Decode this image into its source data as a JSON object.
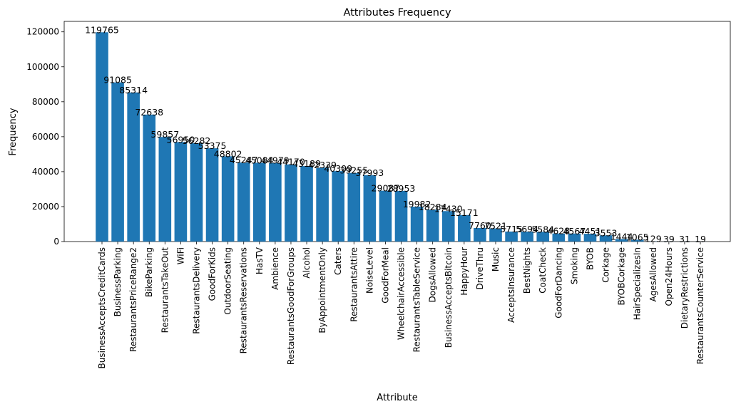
{
  "chart_data": {
    "type": "bar",
    "title": "Attributes Frequency",
    "xlabel": "Attribute",
    "ylabel": "Frequency",
    "ylim": [
      0,
      126000
    ],
    "yticks": [
      0,
      20000,
      40000,
      60000,
      80000,
      100000,
      120000
    ],
    "grid": false,
    "bar_color": "#1f77b4",
    "categories": [
      "BusinessAcceptsCreditCards",
      "BusinessParking",
      "RestaurantsPriceRange2",
      "BikeParking",
      "RestaurantsTakeOut",
      "WiFi",
      "RestaurantsDelivery",
      "GoodForKids",
      "OutdoorSeating",
      "RestaurantsReservations",
      "HasTV",
      "Ambience",
      "RestaurantsGoodForGroups",
      "Alcohol",
      "ByAppointmentOnly",
      "Caters",
      "RestaurantsAttire",
      "NoiseLevel",
      "GoodForMeal",
      "WheelchairAccessible",
      "RestaurantsTableService",
      "DogsAllowed",
      "BusinessAcceptsBitcoin",
      "HappyHour",
      "DriveThru",
      "Music",
      "AcceptsInsurance",
      "BestNights",
      "CoatCheck",
      "GoodForDancing",
      "Smoking",
      "BYOB",
      "Corkage",
      "BYOBCorkage",
      "HairSpecializesIn",
      "AgesAllowed",
      "Open24Hours",
      "DietaryRestrictions",
      "RestaurantsCounterService"
    ],
    "values": [
      119765,
      91085,
      85314,
      72638,
      59857,
      56950,
      56282,
      53375,
      48802,
      45247,
      45084,
      44979,
      44170,
      43189,
      42339,
      40309,
      39255,
      37993,
      29087,
      28953,
      19982,
      18284,
      17430,
      15171,
      7760,
      7521,
      5715,
      5694,
      5584,
      4628,
      4567,
      4451,
      3553,
      1444,
      1065,
      129,
      39,
      31,
      19
    ],
    "data_labels": [
      "119765",
      "91085",
      "85314",
      "72638",
      "59857",
      "56950",
      "56282",
      "53375",
      "48802",
      "45247",
      "45084",
      "44979",
      "44170",
      "43189",
      "42339",
      "40309",
      "39255",
      "37993",
      "29087",
      "28953",
      "19982",
      "18284",
      "17430",
      "15171",
      "7760",
      "7521",
      "5715",
      "5694",
      "5584",
      "4628",
      "4567",
      "4451",
      "3553",
      "1444",
      "1065",
      "129",
      "39",
      "31",
      "19"
    ]
  }
}
